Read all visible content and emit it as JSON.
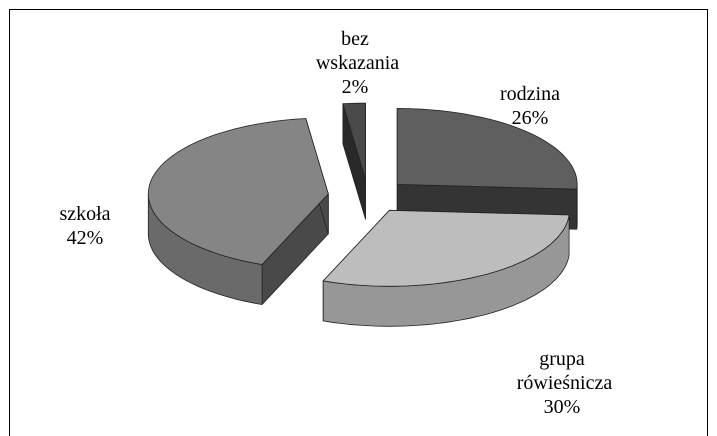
{
  "chart_data": {
    "type": "pie",
    "categories": [
      "rodzina",
      "grupa rówieśnicza",
      "szkoła",
      "bez wskazania"
    ],
    "values": [
      26,
      30,
      42,
      2
    ],
    "value_labels": [
      "26%",
      "30%",
      "42%",
      "2%"
    ],
    "colors": [
      "#5f5f5f",
      "#bdbdbd",
      "#858585",
      "#4a4a4a"
    ]
  }
}
